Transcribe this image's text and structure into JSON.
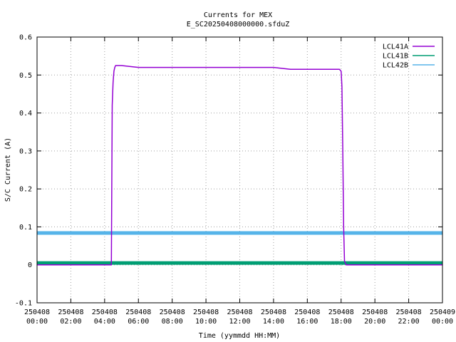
{
  "chart_data": {
    "type": "line",
    "title": "Currents for MEX",
    "subtitle": "E_SC20250408000000.sfduZ",
    "xlabel": "Time (yymmdd HH:MM)",
    "ylabel": "S/C Current (A)",
    "xlim": [
      0,
      24
    ],
    "ylim": [
      -0.1,
      0.6
    ],
    "grid": true,
    "legend_position": "top-right",
    "yticks": [
      -0.1,
      0,
      0.1,
      0.2,
      0.3,
      0.4,
      0.5,
      0.6
    ],
    "ytick_labels": [
      "-0.1",
      "0",
      "0.1",
      "0.2",
      "0.3",
      "0.4",
      "0.5",
      "0.6"
    ],
    "xticks": [
      {
        "t": 0,
        "date": "250408",
        "time": "00:00"
      },
      {
        "t": 2,
        "date": "250408",
        "time": "02:00"
      },
      {
        "t": 4,
        "date": "250408",
        "time": "04:00"
      },
      {
        "t": 6,
        "date": "250408",
        "time": "06:00"
      },
      {
        "t": 8,
        "date": "250408",
        "time": "08:00"
      },
      {
        "t": 10,
        "date": "250408",
        "time": "10:00"
      },
      {
        "t": 12,
        "date": "250408",
        "time": "12:00"
      },
      {
        "t": 14,
        "date": "250408",
        "time": "14:00"
      },
      {
        "t": 16,
        "date": "250408",
        "time": "16:00"
      },
      {
        "t": 18,
        "date": "250408",
        "time": "18:00"
      },
      {
        "t": 20,
        "date": "250408",
        "time": "20:00"
      },
      {
        "t": 22,
        "date": "250408",
        "time": "22:00"
      },
      {
        "t": 24,
        "date": "250409",
        "time": "00:00"
      }
    ],
    "series": [
      {
        "name": "LCL41A",
        "color": "#9400d3",
        "x": [
          0,
          4.4,
          4.45,
          4.5,
          4.55,
          4.6,
          4.65,
          4.7,
          5,
          6,
          7,
          8,
          9,
          10,
          11,
          12,
          13,
          14,
          15,
          16,
          17,
          17.9,
          18.0,
          18.05,
          18.1,
          18.15,
          18.2,
          18.3,
          19,
          20,
          22,
          24
        ],
        "y": [
          0,
          0,
          0.42,
          0.48,
          0.51,
          0.52,
          0.525,
          0.525,
          0.525,
          0.52,
          0.52,
          0.52,
          0.52,
          0.52,
          0.52,
          0.52,
          0.52,
          0.52,
          0.515,
          0.515,
          0.515,
          0.515,
          0.51,
          0.47,
          0.3,
          0.1,
          0.01,
          0,
          0,
          0,
          0,
          0
        ]
      },
      {
        "name": "LCL41B",
        "color": "#009e73",
        "x": [
          0,
          24
        ],
        "y": [
          0.005,
          0.005
        ]
      },
      {
        "name": "LCL42B",
        "color": "#56b4e9",
        "x": [
          0,
          24
        ],
        "y": [
          0.084,
          0.084
        ]
      }
    ]
  }
}
